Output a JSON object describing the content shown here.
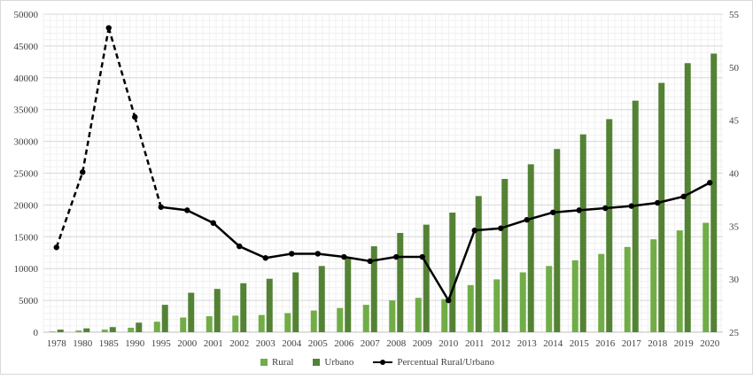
{
  "chart_data": {
    "type": "bar",
    "categories": [
      "1978",
      "1980",
      "1985",
      "1990",
      "1995",
      "2000",
      "2001",
      "2002",
      "2003",
      "2004",
      "2005",
      "2006",
      "2007",
      "2008",
      "2009",
      "2010",
      "2011",
      "2012",
      "2013",
      "2014",
      "2015",
      "2016",
      "2017",
      "2018",
      "2019",
      "2020"
    ],
    "series": [
      {
        "name": "Rural",
        "type": "bar",
        "axis": "left",
        "color": "#70ad47",
        "values": [
          100,
          250,
          400,
          700,
          1650,
          2300,
          2500,
          2600,
          2700,
          3000,
          3400,
          3800,
          4300,
          5000,
          5400,
          5200,
          7400,
          8300,
          9400,
          10400,
          11300,
          12300,
          13400,
          14600,
          16000,
          17200
        ]
      },
      {
        "name": "Urbano",
        "type": "bar",
        "axis": "left",
        "color": "#548235",
        "values": [
          400,
          600,
          800,
          1500,
          4300,
          6200,
          6800,
          7700,
          8400,
          9400,
          10400,
          11700,
          13500,
          15600,
          16900,
          18800,
          21400,
          24100,
          26400,
          28800,
          31100,
          33500,
          36400,
          39200,
          42300,
          43800
        ]
      },
      {
        "name": "Percentual Rural/Urbano",
        "type": "line",
        "axis": "right",
        "color": "#000000",
        "values": [
          33.0,
          40.1,
          53.7,
          45.3,
          36.8,
          36.5,
          35.3,
          33.1,
          32.0,
          32.4,
          32.4,
          32.1,
          31.7,
          32.1,
          32.1,
          28.0,
          34.6,
          34.8,
          35.6,
          36.3,
          36.5,
          36.7,
          36.9,
          37.2,
          37.8,
          39.1
        ],
        "dashed_through_index": 4
      }
    ],
    "y_left": {
      "min": 0,
      "max": 50000,
      "step": 5000,
      "ticks": [
        "0",
        "5000",
        "10000",
        "15000",
        "20000",
        "25000",
        "30000",
        "35000",
        "40000",
        "45000",
        "50000"
      ]
    },
    "y_right": {
      "min": 25,
      "max": 55,
      "step": 5,
      "ticks": [
        "25",
        "30",
        "35",
        "40",
        "45",
        "50",
        "55"
      ]
    },
    "grid": true,
    "legend_position": "bottom"
  },
  "legend": {
    "rural": "Rural",
    "urbano": "Urbano",
    "line": "Percentual Rural/Urbano"
  }
}
